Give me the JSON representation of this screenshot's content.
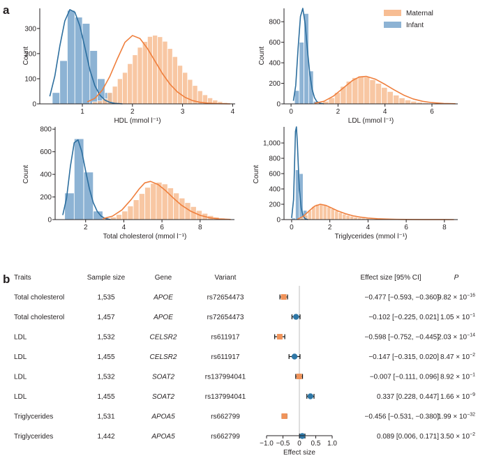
{
  "colors": {
    "maternal": "#f0935a",
    "maternal_fill": "#f7bd93",
    "maternal_line": "#ef7f3d",
    "infant": "#2f77a6",
    "infant_fill": "#8db3d4",
    "infant_line": "#2c6e9e",
    "axis": "#231f20",
    "zero_line": "#c9c9c9"
  },
  "panel_a": {
    "label": "a"
  },
  "panel_b": {
    "label": "b"
  },
  "legend": {
    "maternal": "Maternal",
    "infant": "Infant"
  },
  "chart_data": [
    {
      "type": "histogram",
      "id": "hdl",
      "xlabel": "HDL (mmol l⁻¹)",
      "ylabel": "Count",
      "xlim": [
        0.15,
        4.05
      ],
      "ylim": [
        0,
        380
      ],
      "xticks": [
        1,
        2,
        3,
        4
      ],
      "yticks": [
        0,
        100,
        200,
        300
      ],
      "ytick_labels": [
        "0",
        "100",
        "200",
        "300"
      ],
      "series": [
        {
          "name": "Infant",
          "bin_start": 0.4,
          "bin_width": 0.15,
          "counts": [
            45,
            172,
            372,
            345,
            320,
            212,
            100,
            45,
            8,
            2
          ]
        },
        {
          "name": "Maternal",
          "bin_start": 1.2,
          "bin_width": 0.1,
          "counts": [
            8,
            12,
            20,
            45,
            70,
            100,
            125,
            160,
            195,
            225,
            248,
            268,
            273,
            267,
            249,
            220,
            188,
            153,
            125,
            97,
            73,
            52,
            36,
            24,
            15,
            9,
            5,
            3,
            1.5,
            1
          ]
        }
      ],
      "kde": [
        {
          "name": "Infant",
          "x": [
            0.35,
            0.45,
            0.55,
            0.65,
            0.75,
            0.85,
            0.95,
            1.05,
            1.15,
            1.25,
            1.35,
            1.45,
            1.55,
            1.65,
            1.8
          ],
          "y": [
            30,
            110,
            230,
            330,
            375,
            365,
            310,
            225,
            135,
            72,
            35,
            15,
            6,
            2,
            0
          ]
        },
        {
          "name": "Maternal",
          "x": [
            1.1,
            1.25,
            1.4,
            1.55,
            1.7,
            1.85,
            2.0,
            2.15,
            2.3,
            2.45,
            2.6,
            2.75,
            2.9,
            3.05,
            3.2,
            3.35,
            3.5,
            3.7,
            3.95
          ],
          "y": [
            8,
            22,
            55,
            110,
            180,
            245,
            272,
            260,
            220,
            170,
            120,
            78,
            47,
            26,
            13,
            6,
            3,
            1,
            0
          ]
        }
      ]
    },
    {
      "type": "histogram",
      "id": "ldl",
      "xlabel": "LDL (mmol l⁻¹)",
      "ylabel": "Count",
      "xlim": [
        -0.3,
        7.1
      ],
      "ylim": [
        0,
        930
      ],
      "xticks": [
        0,
        2,
        4,
        6
      ],
      "yticks": [
        0,
        200,
        400,
        600,
        800
      ],
      "ytick_labels": [
        "0",
        "200",
        "400",
        "600",
        "800"
      ],
      "series": [
        {
          "name": "Infant",
          "bin_start": 0.15,
          "bin_width": 0.2,
          "counts": [
            130,
            600,
            880,
            320,
            25
          ]
        },
        {
          "name": "Maternal",
          "bin_start": 1.1,
          "bin_width": 0.25,
          "counts": [
            8,
            25,
            60,
            110,
            170,
            220,
            255,
            270,
            262,
            235,
            200,
            160,
            120,
            85,
            58,
            38,
            25,
            15,
            9,
            5,
            3,
            1.5,
            1,
            0.5
          ]
        }
      ],
      "kde": [
        {
          "name": "Infant",
          "x": [
            0.1,
            0.2,
            0.3,
            0.4,
            0.5,
            0.6,
            0.7,
            0.8,
            0.9,
            1.0,
            1.1,
            1.25,
            1.4
          ],
          "y": [
            30,
            180,
            540,
            850,
            930,
            780,
            520,
            290,
            140,
            60,
            22,
            5,
            0
          ]
        },
        {
          "name": "Maternal",
          "x": [
            1.0,
            1.4,
            1.8,
            2.2,
            2.6,
            2.9,
            3.2,
            3.6,
            4.0,
            4.4,
            4.8,
            5.2,
            5.6,
            6.0,
            6.5,
            7.0
          ],
          "y": [
            6,
            25,
            75,
            150,
            225,
            262,
            268,
            240,
            190,
            135,
            85,
            48,
            25,
            12,
            4,
            1
          ]
        }
      ]
    },
    {
      "type": "histogram",
      "id": "totalchol",
      "xlabel": "Total cholesterol (mmol l⁻¹)",
      "ylabel": "Count",
      "xlim": [
        0.4,
        9.8
      ],
      "ylim": [
        0,
        820
      ],
      "xticks": [
        2,
        4,
        6,
        8
      ],
      "yticks": [
        0,
        200,
        400,
        600,
        800
      ],
      "ytick_labels": [
        "0",
        "200",
        "400",
        "600",
        "800"
      ],
      "series": [
        {
          "name": "Infant",
          "bin_start": 0.9,
          "bin_width": 0.5,
          "counts": [
            235,
            715,
            420,
            75,
            5
          ]
        },
        {
          "name": "Maternal",
          "bin_start": 3.0,
          "bin_width": 0.3,
          "counts": [
            10,
            22,
            45,
            75,
            120,
            175,
            230,
            285,
            320,
            330,
            315,
            280,
            235,
            190,
            150,
            115,
            80,
            55,
            35,
            22,
            13,
            8,
            4,
            2,
            1,
            0.5
          ]
        }
      ],
      "kde": [
        {
          "name": "Infant",
          "x": [
            0.8,
            1.0,
            1.2,
            1.4,
            1.6,
            1.8,
            2.0,
            2.2,
            2.4,
            2.6,
            2.8,
            3.0,
            3.3
          ],
          "y": [
            40,
            190,
            470,
            680,
            705,
            600,
            430,
            270,
            150,
            75,
            32,
            12,
            0
          ]
        },
        {
          "name": "Maternal",
          "x": [
            2.9,
            3.4,
            3.9,
            4.4,
            4.8,
            5.1,
            5.4,
            5.8,
            6.2,
            6.6,
            7.0,
            7.5,
            8.0,
            8.5,
            9.0,
            9.6
          ],
          "y": [
            8,
            30,
            85,
            180,
            270,
            325,
            338,
            310,
            255,
            190,
            130,
            75,
            38,
            16,
            6,
            1
          ]
        }
      ]
    },
    {
      "type": "histogram",
      "id": "trig",
      "xlabel": "Triglycerides (mmol l⁻¹)",
      "ylabel": "Count",
      "xlim": [
        -0.4,
        8.7
      ],
      "ylim": [
        0,
        1210
      ],
      "xticks": [
        0,
        2,
        4,
        6,
        8
      ],
      "yticks": [
        0,
        200,
        400,
        600,
        800,
        1000
      ],
      "ytick_labels": [
        "0",
        "200",
        "400",
        "600",
        "800",
        "1,000"
      ],
      "series": [
        {
          "name": "Infant",
          "bin_start": 0.0,
          "bin_width": 0.2,
          "counts": [
            20,
            650,
            600,
            120
          ]
        },
        {
          "name": "Maternal",
          "bin_start": 0.45,
          "bin_width": 0.2,
          "counts": [
            20,
            60,
            120,
            170,
            200,
            205,
            190,
            165,
            140,
            115,
            92,
            72,
            56,
            44,
            33,
            25,
            19,
            14,
            10,
            8,
            6,
            4,
            3,
            2,
            1.5,
            1,
            1,
            0.5,
            0.5,
            0.5,
            0.3,
            0.3,
            0.2,
            0.2,
            0.1,
            0.1,
            0.1,
            0.1,
            0.1,
            0.1
          ]
        }
      ],
      "kde": [
        {
          "name": "Infant",
          "x": [
            0.0,
            0.1,
            0.15,
            0.2,
            0.25,
            0.3,
            0.35,
            0.4,
            0.5,
            0.6,
            0.7,
            0.85
          ],
          "y": [
            20,
            260,
            700,
            1150,
            1210,
            1000,
            700,
            420,
            150,
            50,
            12,
            0
          ]
        },
        {
          "name": "Maternal",
          "x": [
            0.3,
            0.6,
            0.9,
            1.2,
            1.5,
            1.8,
            2.1,
            2.4,
            2.8,
            3.2,
            3.6,
            4.0,
            4.5,
            5.0,
            5.5,
            6.0,
            7.0,
            8.5
          ],
          "y": [
            5,
            40,
            110,
            175,
            200,
            185,
            150,
            115,
            78,
            50,
            32,
            20,
            11,
            6,
            3,
            2,
            0.5,
            0
          ]
        }
      ]
    },
    {
      "type": "forest",
      "id": "forest",
      "headers": {
        "traits": "Traits",
        "sample": "Sample size",
        "gene": "Gene",
        "variant": "Variant",
        "effect": "Effect size [95% CI]",
        "p": "P"
      },
      "xlabel": "Effect size",
      "xlim": [
        -1.0,
        1.0
      ],
      "xticks": [
        -1.0,
        -0.5,
        0,
        0.5,
        1.0
      ],
      "xtick_labels": [
        "−1.0",
        "−0.5",
        "0",
        "0.5",
        "1.0"
      ],
      "rows": [
        {
          "trait": "Total cholesterol",
          "n": "1,535",
          "gene": "APOE",
          "variant": "rs72654473",
          "ci_text": "−0.477 [−0.593, −0.360]",
          "p_mant": "9.82 × 10",
          "p_exp": "−16",
          "group": "Maternal",
          "est": -0.477,
          "lo": -0.593,
          "hi": -0.36
        },
        {
          "trait": "Total cholesterol",
          "n": "1,457",
          "gene": "APOE",
          "variant": "rs72654473",
          "ci_text": "−0.102 [−0.225, 0.021]",
          "p_mant": "1.05 × 10",
          "p_exp": "−1",
          "group": "Infant",
          "est": -0.102,
          "lo": -0.225,
          "hi": 0.021
        },
        {
          "trait": "LDL",
          "n": "1,532",
          "gene": "CELSR2",
          "variant": "rs611917",
          "ci_text": "−0.598 [−0.752, −0.445]",
          "p_mant": "2.03 × 10",
          "p_exp": "−14",
          "group": "Maternal",
          "est": -0.598,
          "lo": -0.752,
          "hi": -0.445
        },
        {
          "trait": "LDL",
          "n": "1,455",
          "gene": "CELSR2",
          "variant": "rs611917",
          "ci_text": "−0.147 [−0.315, 0.020]",
          "p_mant": "8.47 × 10",
          "p_exp": "−2",
          "group": "Infant",
          "est": -0.147,
          "lo": -0.315,
          "hi": 0.02
        },
        {
          "trait": "LDL",
          "n": "1,532",
          "gene": "SOAT2",
          "variant": "rs137994041",
          "ci_text": "−0.007 [−0.111, 0.096]",
          "p_mant": "8.92 × 10",
          "p_exp": "−1",
          "group": "Maternal",
          "est": -0.007,
          "lo": -0.111,
          "hi": 0.096
        },
        {
          "trait": "LDL",
          "n": "1,455",
          "gene": "SOAT2",
          "variant": "rs137994041",
          "ci_text": "0.337 [0.228, 0.447]",
          "p_mant": "1.66 × 10",
          "p_exp": "−9",
          "group": "Infant",
          "est": 0.337,
          "lo": 0.228,
          "hi": 0.447
        },
        {
          "trait": "Triglycerides",
          "n": "1,531",
          "gene": "APOA5",
          "variant": "rs662799",
          "ci_text": "−0.456 [−0.531, −0.380]",
          "p_mant": "1.99 × 10",
          "p_exp": "−32",
          "group": "Maternal",
          "est": -0.456,
          "lo": -0.531,
          "hi": -0.38
        },
        {
          "trait": "Triglycerides",
          "n": "1,442",
          "gene": "APOA5",
          "variant": "rs662799",
          "ci_text": "0.089 [0.006, 0.171]",
          "p_mant": "3.50 × 10",
          "p_exp": "−2",
          "group": "Infant",
          "est": 0.089,
          "lo": 0.006,
          "hi": 0.171
        }
      ]
    }
  ]
}
